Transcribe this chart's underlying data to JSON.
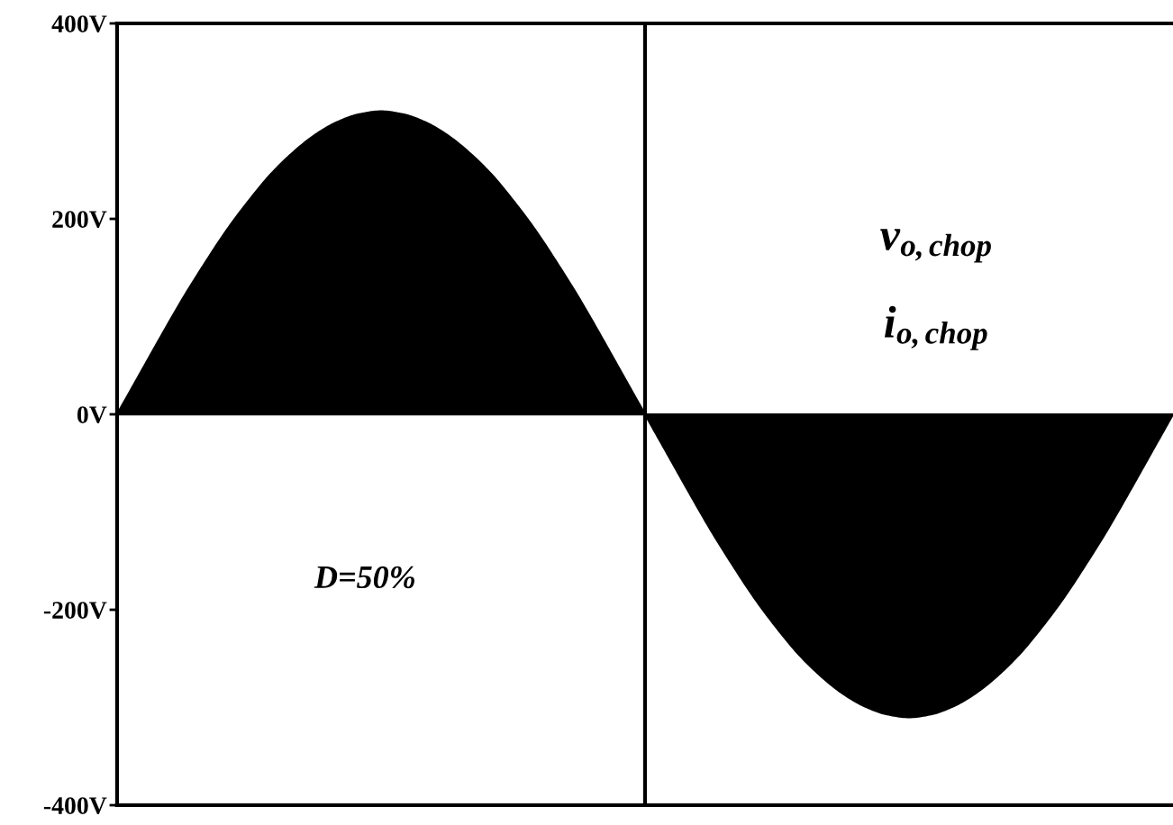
{
  "chart_data": {
    "type": "area",
    "categories": [
      null,
      null,
      null,
      null,
      null,
      null,
      null,
      null,
      null,
      null,
      null,
      null,
      null,
      null,
      null,
      null,
      null,
      null,
      null,
      null,
      null,
      null,
      null,
      null,
      null,
      null,
      null,
      null,
      null,
      null,
      null,
      null,
      null,
      null,
      null,
      null,
      null,
      null,
      null,
      null,
      null,
      null,
      null,
      null,
      null,
      null,
      null,
      null,
      null
    ],
    "series": [
      {
        "color": "#000000",
        "values": [
          0,
          40,
          80,
          119,
          155,
          189,
          219,
          246,
          268,
          286,
          299,
          307,
          310,
          307,
          299,
          286,
          268,
          246,
          219,
          189,
          155,
          119,
          80,
          40,
          0,
          -40,
          -80,
          -119,
          -155,
          -189,
          -219,
          -246,
          -268,
          -286,
          -299,
          -307,
          -310,
          -307,
          -299,
          -286,
          -268,
          -246,
          -219,
          -189,
          -155,
          -119,
          -80,
          -40,
          0
        ]
      }
    ],
    "ylim": [
      -400,
      400
    ],
    "yticks": [
      {
        "value": -400,
        "label": "-400V"
      },
      {
        "value": -200,
        "label": "-200V"
      },
      {
        "value": 0,
        "label": "0V"
      },
      {
        "value": 200,
        "label": "200V"
      },
      {
        "value": 400,
        "label": "400V"
      }
    ],
    "annotations": [
      "v$_{o,chop}$",
      "i$_{o,chop}$",
      "D=50%"
    ],
    "tick_labels": "y"
  }
}
